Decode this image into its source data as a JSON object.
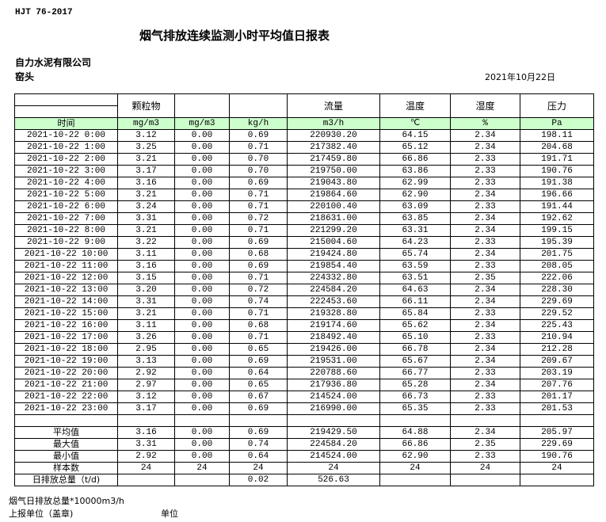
{
  "header": {
    "standard": "HJT  76-2017",
    "title": "烟气排放连续监测小时平均值日报表",
    "company": "自力水泥有限公司",
    "unit": "窑头",
    "date": "2021年10月22日"
  },
  "table": {
    "group_headers": [
      "",
      "颗粒物",
      "",
      "",
      "流量",
      "温度",
      "湿度",
      "压力"
    ],
    "units": [
      "时间",
      "mg/m3",
      "mg/m3",
      "kg/h",
      "m3/h",
      "℃",
      "%",
      "Pa"
    ],
    "rows": [
      [
        "2021-10-22 0:00",
        "3.12",
        "0.00",
        "0.69",
        "220930.20",
        "64.15",
        "2.34",
        "198.11"
      ],
      [
        "2021-10-22 1:00",
        "3.25",
        "0.00",
        "0.71",
        "217382.40",
        "65.12",
        "2.34",
        "204.68"
      ],
      [
        "2021-10-22 2:00",
        "3.21",
        "0.00",
        "0.70",
        "217459.80",
        "66.86",
        "2.33",
        "191.71"
      ],
      [
        "2021-10-22 3:00",
        "3.17",
        "0.00",
        "0.70",
        "219750.00",
        "63.86",
        "2.33",
        "190.76"
      ],
      [
        "2021-10-22 4:00",
        "3.16",
        "0.00",
        "0.69",
        "219043.80",
        "62.99",
        "2.33",
        "191.38"
      ],
      [
        "2021-10-22 5:00",
        "3.21",
        "0.00",
        "0.71",
        "219864.60",
        "62.90",
        "2.34",
        "196.66"
      ],
      [
        "2021-10-22 6:00",
        "3.24",
        "0.00",
        "0.71",
        "220100.40",
        "63.09",
        "2.33",
        "191.44"
      ],
      [
        "2021-10-22 7:00",
        "3.31",
        "0.00",
        "0.72",
        "218631.00",
        "63.85",
        "2.34",
        "192.62"
      ],
      [
        "2021-10-22 8:00",
        "3.21",
        "0.00",
        "0.71",
        "221299.20",
        "63.31",
        "2.34",
        "199.15"
      ],
      [
        "2021-10-22 9:00",
        "3.22",
        "0.00",
        "0.69",
        "215004.60",
        "64.23",
        "2.33",
        "195.39"
      ],
      [
        "2021-10-22 10:00",
        "3.11",
        "0.00",
        "0.68",
        "219424.80",
        "65.74",
        "2.34",
        "201.75"
      ],
      [
        "2021-10-22 11:00",
        "3.16",
        "0.00",
        "0.69",
        "219854.40",
        "63.59",
        "2.33",
        "208.05"
      ],
      [
        "2021-10-22 12:00",
        "3.15",
        "0.00",
        "0.71",
        "224332.80",
        "63.51",
        "2.35",
        "222.06"
      ],
      [
        "2021-10-22 13:00",
        "3.20",
        "0.00",
        "0.72",
        "224584.20",
        "64.63",
        "2.34",
        "228.30"
      ],
      [
        "2021-10-22 14:00",
        "3.31",
        "0.00",
        "0.74",
        "222453.60",
        "66.11",
        "2.34",
        "229.69"
      ],
      [
        "2021-10-22 15:00",
        "3.21",
        "0.00",
        "0.71",
        "219328.80",
        "65.84",
        "2.33",
        "229.52"
      ],
      [
        "2021-10-22 16:00",
        "3.11",
        "0.00",
        "0.68",
        "219174.60",
        "65.62",
        "2.34",
        "225.43"
      ],
      [
        "2021-10-22 17:00",
        "3.26",
        "0.00",
        "0.71",
        "218492.40",
        "65.10",
        "2.33",
        "210.94"
      ],
      [
        "2021-10-22 18:00",
        "2.95",
        "0.00",
        "0.65",
        "219426.00",
        "66.78",
        "2.34",
        "212.28"
      ],
      [
        "2021-10-22 19:00",
        "3.13",
        "0.00",
        "0.69",
        "219531.00",
        "65.67",
        "2.34",
        "209.67"
      ],
      [
        "2021-10-22 20:00",
        "2.92",
        "0.00",
        "0.64",
        "220788.60",
        "66.77",
        "2.33",
        "203.19"
      ],
      [
        "2021-10-22 21:00",
        "2.97",
        "0.00",
        "0.65",
        "217936.80",
        "65.28",
        "2.34",
        "207.76"
      ],
      [
        "2021-10-22 22:00",
        "3.12",
        "0.00",
        "0.67",
        "214524.00",
        "66.73",
        "2.33",
        "201.17"
      ],
      [
        "2021-10-22 23:00",
        "3.17",
        "0.00",
        "0.69",
        "216990.00",
        "65.35",
        "2.33",
        "201.53"
      ]
    ],
    "summary": [
      [
        "平均值",
        "3.16",
        "0.00",
        "0.69",
        "219429.50",
        "64.88",
        "2.34",
        "205.97"
      ],
      [
        "最大值",
        "3.31",
        "0.00",
        "0.74",
        "224584.20",
        "66.86",
        "2.35",
        "229.69"
      ],
      [
        "最小值",
        "2.92",
        "0.00",
        "0.64",
        "214524.00",
        "62.90",
        "2.33",
        "190.76"
      ],
      [
        "样本数",
        "24",
        "24",
        "24",
        "24",
        "24",
        "24",
        "24"
      ],
      [
        "日排放总量（t/d)",
        "",
        "",
        "0.02",
        "526.63",
        "",
        "",
        ""
      ]
    ]
  },
  "footer": {
    "note": "烟气日排放总量*10000m3/h",
    "reporter": "上报单位（盖章)",
    "unit_label": "单位"
  }
}
